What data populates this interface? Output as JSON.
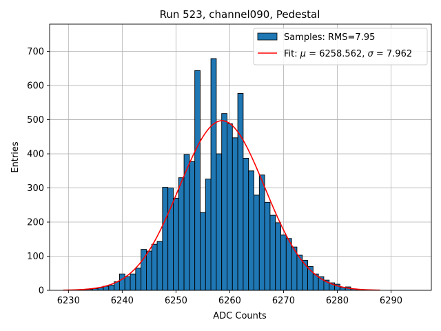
{
  "chart_data": {
    "type": "bar",
    "title": "Run 523, channel090, Pedestal",
    "xlabel": "ADC Counts",
    "ylabel": "Entries",
    "xlim": [
      6226.5,
      6297.5
    ],
    "ylim": [
      0,
      780
    ],
    "xticks": [
      6230,
      6240,
      6250,
      6260,
      6270,
      6280,
      6290
    ],
    "yticks": [
      0,
      100,
      200,
      300,
      400,
      500,
      600,
      700
    ],
    "grid": true,
    "legend_position": "top-right",
    "histogram": {
      "name": "Samples: RMS=7.95",
      "color": "#1f77b4",
      "bin_width": 1,
      "bins": [
        {
          "x": 6232,
          "y": 1
        },
        {
          "x": 6233,
          "y": 1
        },
        {
          "x": 6234,
          "y": 3
        },
        {
          "x": 6235,
          "y": 5
        },
        {
          "x": 6236,
          "y": 8
        },
        {
          "x": 6237,
          "y": 12
        },
        {
          "x": 6238,
          "y": 15
        },
        {
          "x": 6239,
          "y": 25
        },
        {
          "x": 6240,
          "y": 48
        },
        {
          "x": 6241,
          "y": 40
        },
        {
          "x": 6242,
          "y": 48
        },
        {
          "x": 6243,
          "y": 65
        },
        {
          "x": 6244,
          "y": 120
        },
        {
          "x": 6245,
          "y": 115
        },
        {
          "x": 6246,
          "y": 135
        },
        {
          "x": 6247,
          "y": 143
        },
        {
          "x": 6248,
          "y": 302
        },
        {
          "x": 6249,
          "y": 300
        },
        {
          "x": 6250,
          "y": 270
        },
        {
          "x": 6251,
          "y": 330
        },
        {
          "x": 6252,
          "y": 398
        },
        {
          "x": 6253,
          "y": 377
        },
        {
          "x": 6254,
          "y": 644
        },
        {
          "x": 6255,
          "y": 228
        },
        {
          "x": 6256,
          "y": 326
        },
        {
          "x": 6257,
          "y": 679
        },
        {
          "x": 6258,
          "y": 400
        },
        {
          "x": 6259,
          "y": 518
        },
        {
          "x": 6260,
          "y": 488
        },
        {
          "x": 6261,
          "y": 447
        },
        {
          "x": 6262,
          "y": 577
        },
        {
          "x": 6263,
          "y": 387
        },
        {
          "x": 6264,
          "y": 350
        },
        {
          "x": 6265,
          "y": 279
        },
        {
          "x": 6266,
          "y": 338
        },
        {
          "x": 6267,
          "y": 258
        },
        {
          "x": 6268,
          "y": 220
        },
        {
          "x": 6269,
          "y": 198
        },
        {
          "x": 6270,
          "y": 162
        },
        {
          "x": 6271,
          "y": 152
        },
        {
          "x": 6272,
          "y": 127
        },
        {
          "x": 6273,
          "y": 103
        },
        {
          "x": 6274,
          "y": 88
        },
        {
          "x": 6275,
          "y": 70
        },
        {
          "x": 6276,
          "y": 48
        },
        {
          "x": 6277,
          "y": 40
        },
        {
          "x": 6278,
          "y": 30
        },
        {
          "x": 6279,
          "y": 22
        },
        {
          "x": 6280,
          "y": 18
        },
        {
          "x": 6281,
          "y": 9
        },
        {
          "x": 6282,
          "y": 10
        },
        {
          "x": 6283,
          "y": 4
        },
        {
          "x": 6284,
          "y": 2
        },
        {
          "x": 6285,
          "y": 1
        }
      ]
    },
    "fit": {
      "name_prefix": "Fit: ",
      "name_mu": "μ",
      "name_mid": " = 6258.562, ",
      "name_sigma": "σ",
      "name_suffix": " = 7.962",
      "color": "#ff0000",
      "mu": 6258.562,
      "sigma": 7.962,
      "amplitude": 497,
      "x_range": [
        6229,
        6288
      ]
    }
  }
}
